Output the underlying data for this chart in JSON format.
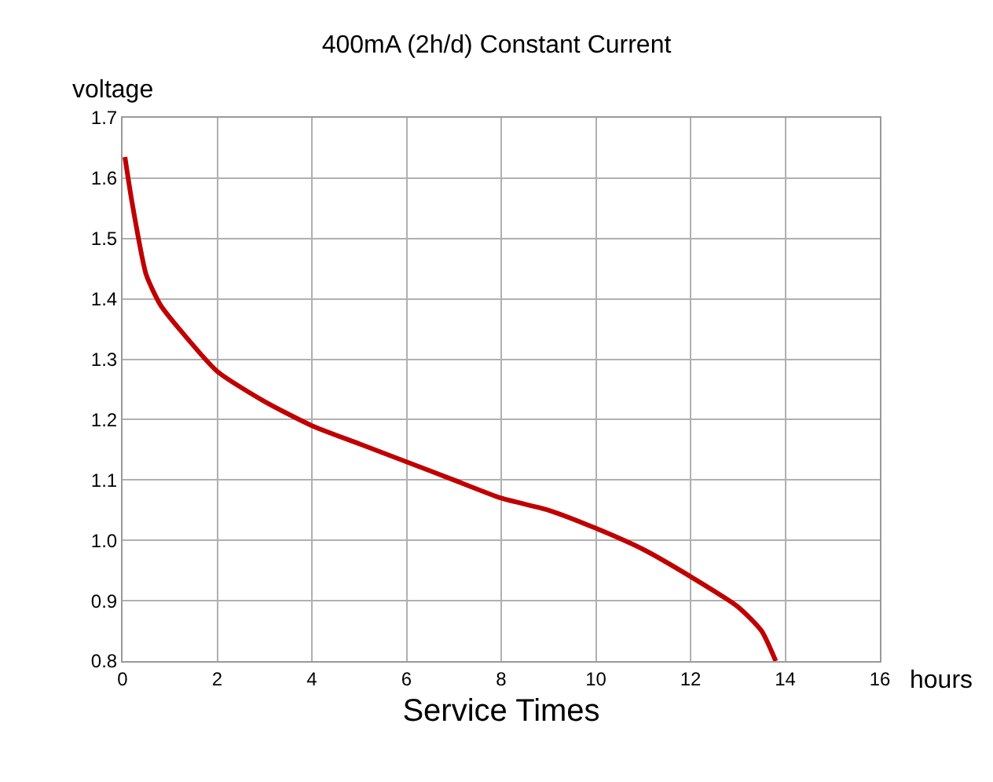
{
  "chart_data": {
    "type": "line",
    "title": "400mA (2h/d) Constant Current",
    "xlabel": "Service Times",
    "ylabel": "voltage",
    "annotations": [
      "hours"
    ],
    "x": [
      0.05,
      0.2,
      0.5,
      0.8,
      1.2,
      2,
      3,
      4,
      5,
      6,
      7,
      8,
      9,
      10,
      11,
      12,
      13,
      13.5,
      13.8
    ],
    "series": [
      {
        "color": "#c00000",
        "values": [
          1.635,
          1.56,
          1.44,
          1.39,
          1.35,
          1.28,
          1.23,
          1.19,
          1.16,
          1.13,
          1.1,
          1.07,
          1.05,
          1.02,
          0.985,
          0.94,
          0.89,
          0.85,
          0.8
        ]
      }
    ],
    "xlim": [
      0,
      16
    ],
    "xticks": [
      0,
      2,
      4,
      6,
      8,
      10,
      12,
      14,
      16
    ],
    "ylim": [
      0.8,
      1.7
    ],
    "yticks": [
      0.8,
      0.9,
      {
        "value": 1,
        "label": "1.0"
      },
      1.1,
      1.2,
      1.3,
      1.4,
      1.5,
      1.6,
      1.7
    ],
    "grid": true,
    "marker": "none",
    "line_style": "solid"
  }
}
